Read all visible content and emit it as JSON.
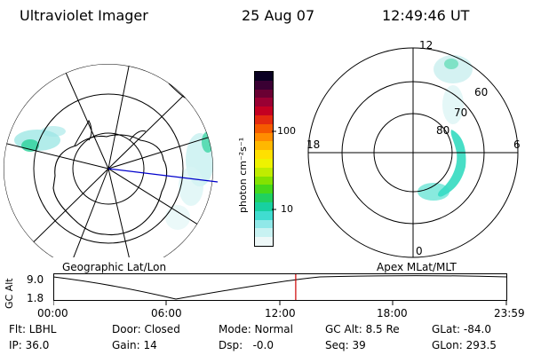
{
  "header": {
    "title": "Ultraviolet Imager",
    "date": "25 Aug 07",
    "time": "12:49:46 UT"
  },
  "left_map": {
    "caption": "Geographic Lat/Lon"
  },
  "right_map": {
    "caption": "Apex MLat/MLT",
    "mlt_labels": [
      "12",
      "18",
      "6",
      "0"
    ],
    "mlat_labels": [
      "60",
      "70",
      "80"
    ]
  },
  "colorbar": {
    "unit_label": "photon cm⁻²s⁻¹",
    "ticks": [
      "100",
      "10"
    ],
    "colors": [
      "#0a0022",
      "#3a0033",
      "#6a0033",
      "#9a0033",
      "#c40022",
      "#e42a10",
      "#f55a00",
      "#ff8c00",
      "#ffb800",
      "#ffe000",
      "#eef200",
      "#c0ec00",
      "#84e200",
      "#46d81a",
      "#20d060",
      "#18d0a0",
      "#40dcd0",
      "#90e8e8",
      "#c8f2f2",
      "#eef8f8"
    ]
  },
  "altitude_plot": {
    "ylabel": "GC Alt",
    "y_ticks": [
      "9.0",
      "1.8"
    ],
    "x_ticks": [
      "00:00",
      "06:00",
      "12:00",
      "18:00",
      "23:59"
    ],
    "current_time_fraction": 0.535
  },
  "info": {
    "filter": "Flt: LBHL",
    "door": "Door: Closed",
    "mode": "Mode: Normal",
    "gc_alt": "GC Alt: 8.5 Re",
    "glat": "GLat: -84.0",
    "ip": "IP: 36.0",
    "gain": "Gain: 14",
    "dsp": "Dsp:   -0.0",
    "seq": "Seq: 39",
    "glon": "GLon: 293.5"
  }
}
